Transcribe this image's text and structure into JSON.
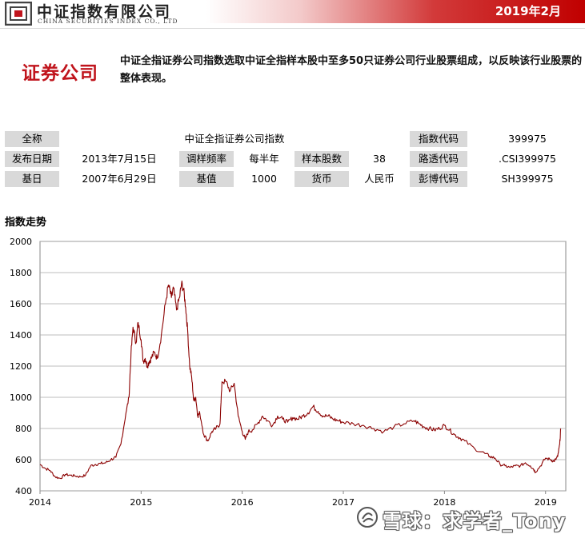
{
  "header": {
    "brand_cn": "中证指数有限公司",
    "brand_en": "CHINA SECURITIES INDEX CO., LTD",
    "date": "2019年2月"
  },
  "title": "证券公司",
  "description": "中证全指证券公司指数选取中证全指样本股中至多50只证券公司行业股票组成，以反映该行业股票的整体表现。",
  "info": {
    "full_name_label": "全称",
    "full_name": "中证全指证券公司指数",
    "index_code_label": "指数代码",
    "index_code": "399975",
    "release_date_label": "发布日期",
    "release_date": "2013年7月15日",
    "rebalance_label": "调样频率",
    "rebalance": "每半年",
    "constituents_label": "样本股数",
    "constituents": "38",
    "reuters_label": "路透代码",
    "reuters": ".CSI399975",
    "base_date_label": "基日",
    "base_date": "2007年6月29日",
    "base_value_label": "基值",
    "base_value": "1000",
    "currency_label": "货币",
    "currency": "人民币",
    "bloomberg_label": "彭博代码",
    "bloomberg": "SH399975"
  },
  "chart_title": "指数走势",
  "watermark": "雪球：求学者_Tony",
  "colors": {
    "accent": "#c0141c",
    "line": "#8b0000",
    "label_bg": "#d9d9d9"
  },
  "chart_data": {
    "type": "line",
    "xlabel": "",
    "ylabel": "",
    "xlim": [
      2014.0,
      2019.2
    ],
    "ylim": [
      400,
      2000
    ],
    "yticks": [
      400,
      600,
      800,
      1000,
      1200,
      1400,
      1600,
      1800,
      2000
    ],
    "xticks": [
      "2014",
      "2015",
      "2016",
      "2017",
      "2018",
      "2019"
    ],
    "grid": "horizontal",
    "series": [
      {
        "x": [
          2014.0,
          2014.05,
          2014.1,
          2014.15,
          2014.2,
          2014.25,
          2014.3,
          2014.35,
          2014.4,
          2014.45,
          2014.5,
          2014.55,
          2014.6,
          2014.65,
          2014.7,
          2014.75,
          2014.8,
          2014.85,
          2014.88,
          2014.9,
          2014.92,
          2014.95,
          2014.97,
          2015.0,
          2015.02,
          2015.04,
          2015.06,
          2015.08,
          2015.1,
          2015.13,
          2015.16,
          2015.2,
          2015.24,
          2015.27,
          2015.3,
          2015.32,
          2015.35,
          2015.38,
          2015.4,
          2015.42,
          2015.44,
          2015.46,
          2015.48,
          2015.5,
          2015.52,
          2015.54,
          2015.56,
          2015.58,
          2015.62,
          2015.66,
          2015.7,
          2015.74,
          2015.78,
          2015.8,
          2015.84,
          2015.88,
          2015.92,
          2015.96,
          2016.0,
          2016.03,
          2016.06,
          2016.1,
          2016.15,
          2016.2,
          2016.25,
          2016.3,
          2016.35,
          2016.4,
          2016.45,
          2016.5,
          2016.55,
          2016.6,
          2016.65,
          2016.7,
          2016.75,
          2016.8,
          2016.85,
          2016.9,
          2016.95,
          2017.0,
          2017.1,
          2017.2,
          2017.3,
          2017.4,
          2017.5,
          2017.6,
          2017.7,
          2017.75,
          2017.8,
          2017.85,
          2017.9,
          2017.95,
          2018.0,
          2018.05,
          2018.1,
          2018.15,
          2018.2,
          2018.3,
          2018.4,
          2018.45,
          2018.5,
          2018.55,
          2018.6,
          2018.65,
          2018.7,
          2018.75,
          2018.8,
          2018.85,
          2018.88,
          2018.9,
          2018.95,
          2019.0,
          2019.05,
          2019.08,
          2019.1,
          2019.12,
          2019.14,
          2019.15
        ],
        "y": [
          570,
          545,
          530,
          490,
          480,
          505,
          500,
          495,
          490,
          500,
          560,
          570,
          575,
          580,
          600,
          615,
          700,
          900,
          1000,
          1280,
          1450,
          1350,
          1480,
          1370,
          1230,
          1250,
          1200,
          1230,
          1250,
          1290,
          1250,
          1400,
          1600,
          1720,
          1640,
          1700,
          1560,
          1640,
          1730,
          1690,
          1580,
          1430,
          1200,
          1130,
          980,
          1000,
          880,
          900,
          760,
          720,
          780,
          800,
          830,
          1100,
          1100,
          1040,
          1090,
          880,
          780,
          730,
          780,
          790,
          830,
          880,
          850,
          820,
          880,
          860,
          840,
          870,
          860,
          880,
          900,
          940,
          910,
          880,
          880,
          860,
          850,
          840,
          830,
          820,
          800,
          780,
          810,
          830,
          850,
          830,
          810,
          800,
          790,
          800,
          820,
          790,
          760,
          740,
          720,
          670,
          640,
          620,
          610,
          570,
          560,
          550,
          560,
          560,
          580,
          560,
          540,
          520,
          560,
          610,
          600,
          590,
          600,
          620,
          700,
          800
        ]
      }
    ]
  }
}
